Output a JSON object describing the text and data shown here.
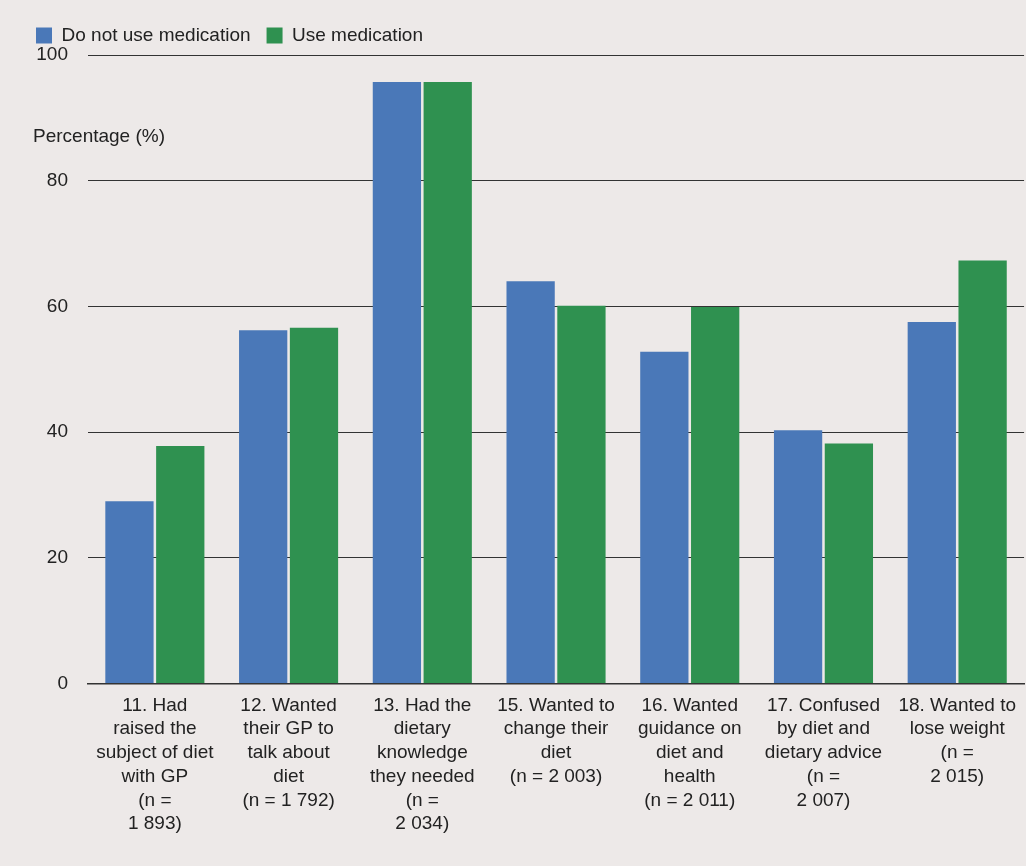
{
  "chart_data": {
    "type": "bar",
    "ylabel": "Percentage (%)",
    "categories": [
      "11. Had raised the subject of diet with GP (n = 1 893)",
      "12. Wanted their GP to talk about diet (n = 1 792)",
      "13. Had the dietary knowledge they needed (n = 2 034)",
      "15. Wanted to change their diet (n = 2 003)",
      "16. Wanted guidance on diet and health (n = 2 011)",
      "17. Confused by diet and dietary advice (n = 2 007)",
      "18. Wanted to lose weight (n = 2 015)"
    ],
    "series": [
      {
        "name": "Do not use medication",
        "color": "#4a78b8",
        "values": [
          29.0,
          56.2,
          95.7,
          64.0,
          52.8,
          40.3,
          57.5
        ]
      },
      {
        "name": "Use medication",
        "color": "#2f9150",
        "values": [
          37.8,
          56.6,
          95.7,
          60.1,
          59.9,
          38.2,
          67.3
        ]
      }
    ],
    "ylim": [
      0,
      100
    ],
    "yticks": [
      0,
      20,
      40,
      60,
      80,
      100
    ],
    "grid": "y",
    "legend": "top left"
  }
}
